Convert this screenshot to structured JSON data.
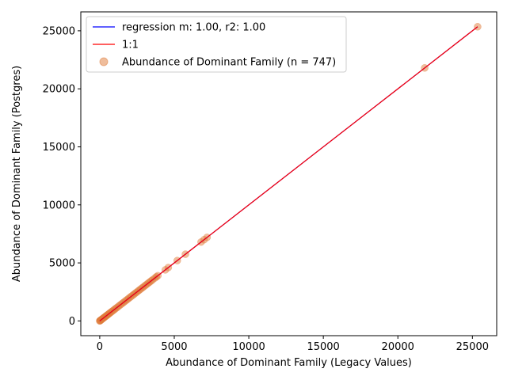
{
  "chart_data": {
    "type": "scatter",
    "title": "",
    "xlabel": "Abundance of Dominant Family (Legacy Values)",
    "ylabel": "Abundance of Dominant Family (Postgres)",
    "xlim": [
      -1270,
      26630
    ],
    "ylim": [
      -1270,
      26630
    ],
    "xticks": [
      0,
      5000,
      10000,
      15000,
      20000,
      25000
    ],
    "yticks": [
      0,
      5000,
      10000,
      15000,
      20000,
      25000
    ],
    "grid": false,
    "legend_position": "top-left",
    "series": [
      {
        "name": "regression m: 1.00, r2: 1.00",
        "kind": "line",
        "color": "#0000ff",
        "x": [
          0,
          25350
        ],
        "y": [
          0,
          25350
        ]
      },
      {
        "name": "1:1",
        "kind": "line",
        "color": "#ff0000",
        "x": [
          0,
          25350
        ],
        "y": [
          0,
          25350
        ]
      },
      {
        "name": "Abundance of Dominant Family (n = 747)",
        "kind": "scatter",
        "color": "#e07b39",
        "x": [
          0,
          20,
          40,
          60,
          90,
          120,
          150,
          200,
          250,
          300,
          350,
          400,
          450,
          500,
          560,
          620,
          680,
          750,
          820,
          900,
          980,
          1060,
          1150,
          1250,
          1350,
          1450,
          1550,
          1650,
          1750,
          1850,
          1950,
          2050,
          2150,
          2250,
          2350,
          2450,
          2550,
          2650,
          2750,
          2850,
          2950,
          3050,
          3150,
          3250,
          3350,
          3450,
          3550,
          3700,
          3800,
          3900,
          4400,
          4600,
          5200,
          5750,
          6800,
          7000,
          7200,
          21800,
          25350
        ],
        "y": [
          0,
          20,
          40,
          60,
          90,
          120,
          150,
          200,
          250,
          300,
          350,
          400,
          450,
          500,
          560,
          620,
          680,
          750,
          820,
          900,
          980,
          1060,
          1150,
          1250,
          1350,
          1450,
          1550,
          1650,
          1750,
          1850,
          1950,
          2050,
          2150,
          2250,
          2350,
          2450,
          2550,
          2650,
          2750,
          2850,
          2950,
          3050,
          3150,
          3250,
          3350,
          3450,
          3550,
          3700,
          3800,
          3900,
          4400,
          4600,
          5200,
          5750,
          6800,
          7000,
          7200,
          21800,
          25350
        ]
      }
    ]
  }
}
